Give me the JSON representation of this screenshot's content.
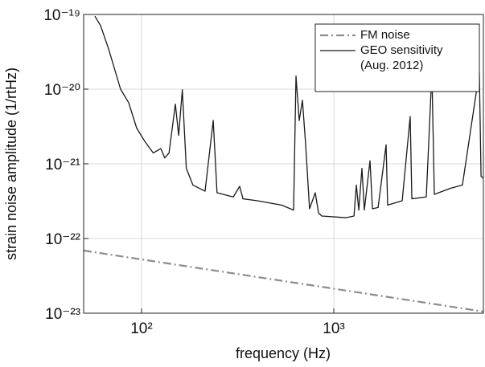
{
  "chart_data": {
    "type": "line",
    "log_x": true,
    "log_y": true,
    "grid": true,
    "legend": "upper right",
    "xlabel": "frequency (Hz)",
    "ylabel": "strain noise amplitude (1/rtHz)",
    "xlim": [
      50,
      6000
    ],
    "ylim": [
      1e-23,
      1e-19
    ],
    "xticks": [
      {
        "value": 100,
        "label": "10²"
      },
      {
        "value": 1000,
        "label": "10³"
      }
    ],
    "yticks": [
      {
        "value": 1e-23,
        "label": "10⁻²³"
      },
      {
        "value": 1e-22,
        "label": "10⁻²²"
      },
      {
        "value": 1e-21,
        "label": "10⁻²¹"
      },
      {
        "value": 1e-20,
        "label": "10⁻²⁰"
      },
      {
        "value": 1e-19,
        "label": "10⁻¹⁹"
      }
    ],
    "series": [
      {
        "name": "FM noise",
        "color": "#8c8c8c",
        "dash": "dashdot",
        "x": [
          50,
          100,
          1000,
          6000
        ],
        "values": [
          6.9e-23,
          5.25e-23,
          2.13e-23,
          1.05e-23
        ]
      },
      {
        "name": "GEO sensitivity\n(Aug. 2012)",
        "color": "#1a1a1a",
        "dash": "solid",
        "x": [
          57.2,
          61.2,
          67.3,
          77.8,
          85.7,
          94.4,
          104,
          115,
          126,
          132,
          139,
          150,
          156,
          163,
          171,
          185,
          214,
          236,
          247,
          300,
          324,
          337,
          401,
          535,
          618,
          636,
          661,
          687,
          714,
          748,
          801,
          833,
          866,
          1155,
          1274,
          1310,
          1349,
          1401,
          1442,
          1543,
          1589,
          1700,
          1871,
          1906,
          2269,
          2497,
          2547,
          3028,
          3238,
          3334,
          4045,
          4667,
          5715,
          5834,
          6000
        ],
        "values": [
          9.5e-20,
          7.1e-20,
          3.5e-20,
          1e-20,
          6.6e-21,
          3e-21,
          2e-21,
          1.4e-21,
          1.6e-21,
          1.2e-21,
          1.4e-21,
          6.3e-21,
          2.4e-21,
          9.8e-21,
          8.7e-22,
          5.2e-22,
          4.3e-22,
          3.8e-21,
          4.1e-22,
          3.6e-22,
          5e-22,
          3.4e-22,
          3.2e-22,
          2.8e-22,
          2.4e-22,
          1.5e-20,
          3.8e-21,
          7.1e-21,
          1.8e-21,
          2.5e-22,
          4.1e-22,
          2.2e-22,
          2e-22,
          1.9e-22,
          2e-22,
          5.2e-22,
          2.4e-22,
          8.7e-22,
          2.4e-22,
          1.1e-21,
          2.5e-22,
          2.6e-22,
          1.8e-21,
          2.8e-22,
          3.2e-22,
          4.3e-21,
          3.4e-22,
          3.6e-22,
          1.7e-20,
          3.9e-22,
          4.7e-22,
          5.2e-22,
          1.7e-20,
          6.8e-22,
          6.4e-22
        ]
      }
    ]
  }
}
